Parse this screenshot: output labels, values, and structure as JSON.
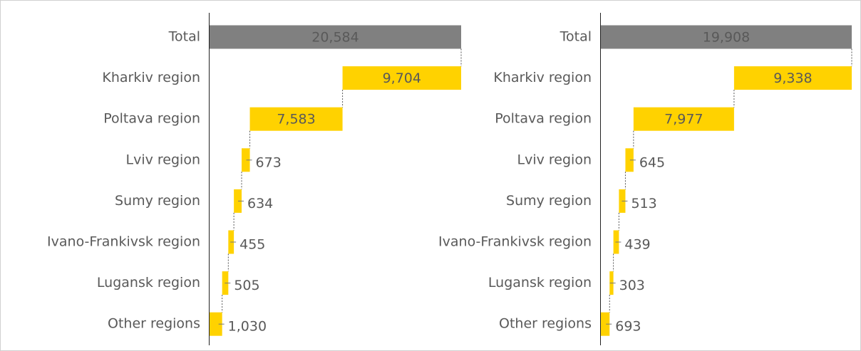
{
  "chart_data": [
    {
      "type": "waterfall",
      "categories": [
        "Total",
        "Kharkiv region",
        "Poltava region",
        "Lviv region",
        "Sumy region",
        "Ivano-Frankivsk region",
        "Lugansk region",
        "Other regions"
      ],
      "values": [
        20584,
        9704,
        7583,
        673,
        634,
        455,
        505,
        1030
      ],
      "value_labels": [
        "20,584",
        "9,704",
        "7,583",
        "673",
        "634",
        "455",
        "505",
        "1,030"
      ],
      "xlim": [
        0,
        20584
      ],
      "total_color": "#808080",
      "color": "#ffd200"
    },
    {
      "type": "waterfall",
      "categories": [
        "Total",
        "Kharkiv region",
        "Poltava region",
        "Lviv region",
        "Sumy region",
        "Ivano-Frankivsk region",
        "Lugansk region",
        "Other regions"
      ],
      "values": [
        19908,
        9338,
        7977,
        645,
        513,
        439,
        303,
        693
      ],
      "value_labels": [
        "19,908",
        "9,338",
        "7,977",
        "645",
        "513",
        "439",
        "303",
        "693"
      ],
      "xlim": [
        0,
        19908
      ],
      "total_color": "#808080",
      "color": "#ffd200"
    }
  ]
}
